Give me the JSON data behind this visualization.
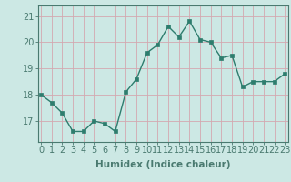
{
  "x": [
    0,
    1,
    2,
    3,
    4,
    5,
    6,
    7,
    8,
    9,
    10,
    11,
    12,
    13,
    14,
    15,
    16,
    17,
    18,
    19,
    20,
    21,
    22,
    23
  ],
  "y": [
    18.0,
    17.7,
    17.3,
    16.6,
    16.6,
    17.0,
    16.9,
    16.6,
    18.1,
    18.6,
    19.6,
    19.9,
    20.6,
    20.2,
    20.8,
    20.1,
    20.0,
    19.4,
    19.5,
    18.3,
    18.5,
    18.5,
    18.5,
    18.8
  ],
  "line_color": "#2e7d6e",
  "marker": "s",
  "marker_size": 2.5,
  "bg_color": "#cce8e4",
  "grid_color": "#d4a8b0",
  "xlabel": "Humidex (Indice chaleur)",
  "ylim": [
    16.2,
    21.4
  ],
  "yticks": [
    17,
    18,
    19,
    20,
    21
  ],
  "xticks": [
    0,
    1,
    2,
    3,
    4,
    5,
    6,
    7,
    8,
    9,
    10,
    11,
    12,
    13,
    14,
    15,
    16,
    17,
    18,
    19,
    20,
    21,
    22,
    23
  ],
  "xlabel_fontsize": 7.5,
  "tick_fontsize": 7,
  "spine_color": "#4a7a70",
  "linewidth": 1.0
}
